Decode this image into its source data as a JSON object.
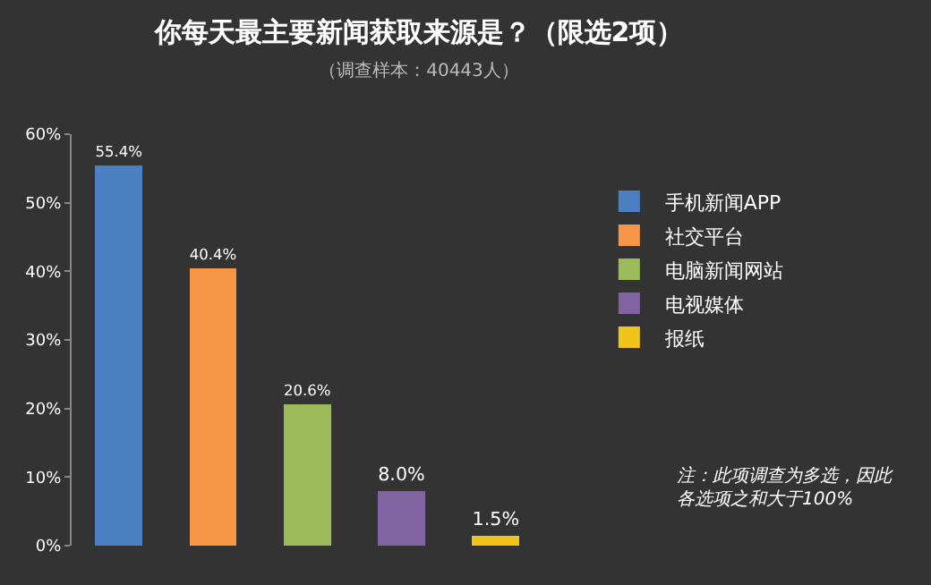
{
  "chart_data": {
    "type": "bar",
    "title": "你每天最主要新闻获取来源是？（限选2项）",
    "subtitle": "（调查样本：40443人）",
    "categories": [
      null,
      null,
      null,
      null,
      null
    ],
    "stacked": true,
    "series": [
      {
        "name": "手机新闻APP",
        "color": "#4a7fc1",
        "values": [
          55.4,
          null,
          null,
          null,
          null
        ],
        "value_labels": [
          "55.4%",
          null,
          null,
          null,
          null
        ]
      },
      {
        "name": "社交平台",
        "color": "#f79646",
        "values": [
          null,
          40.4,
          null,
          null,
          null
        ],
        "value_labels": [
          null,
          "40.4%",
          null,
          null,
          null
        ]
      },
      {
        "name": "电脑新闻网站",
        "color": "#9bbb59",
        "values": [
          null,
          null,
          20.6,
          null,
          null
        ],
        "value_labels": [
          null,
          null,
          "20.6%",
          null,
          null
        ]
      },
      {
        "name": "电视媒体",
        "color": "#8064a2",
        "values": [
          null,
          null,
          null,
          8.0,
          null
        ],
        "value_labels": [
          null,
          null,
          null,
          "8.0%",
          null
        ]
      },
      {
        "name": "报纸",
        "color": "#f0c419",
        "values": [
          null,
          null,
          null,
          null,
          1.5
        ],
        "value_labels": [
          null,
          null,
          null,
          null,
          "1.5%"
        ]
      }
    ],
    "ylim": [
      0,
      60
    ],
    "yticks": [
      {
        "value": 0,
        "label": "0%"
      },
      {
        "value": 10,
        "label": "10%"
      },
      {
        "value": 20,
        "label": "20%"
      },
      {
        "value": 30,
        "label": "30%"
      },
      {
        "value": 40,
        "label": "40%"
      },
      {
        "value": 50,
        "label": "50%"
      },
      {
        "value": 60,
        "label": "60%"
      }
    ],
    "grid": false,
    "legend": "right",
    "annotations": [
      "注：此项调查为多选，因此各选项之和大于100%"
    ]
  }
}
